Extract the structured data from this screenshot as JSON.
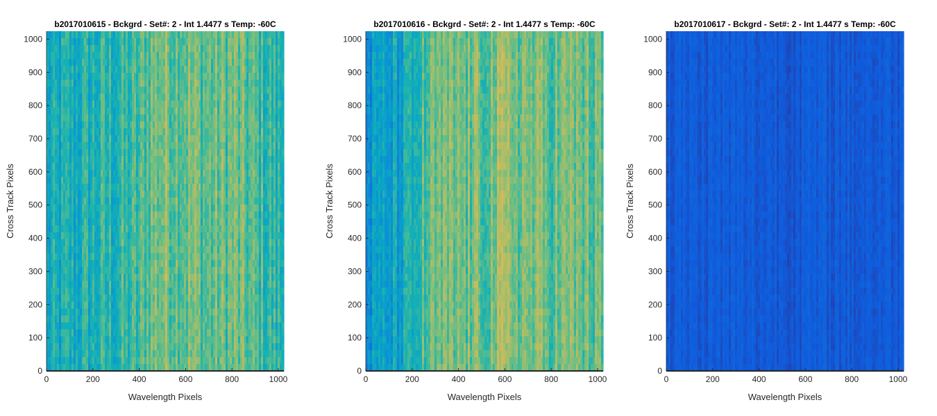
{
  "chart_data": [
    {
      "type": "heatmap",
      "title": "b2017010615 - Bckgrd - Set#: 2 - Int 1.4477 s Temp: -60C",
      "xlabel": "Wavelength Pixels",
      "ylabel": "Cross Track Pixels",
      "xlim": [
        0,
        1024
      ],
      "ylim": [
        0,
        1024
      ],
      "xticks": [
        "0",
        "200",
        "400",
        "600",
        "800",
        "1000"
      ],
      "yticks": [
        "0",
        "100",
        "200",
        "300",
        "400",
        "500",
        "600",
        "700",
        "800",
        "900",
        "1000"
      ],
      "colormap": "parula",
      "column_profile": {
        "x": [
          0,
          100,
          200,
          300,
          400,
          440,
          500,
          600,
          700,
          800,
          900,
          1000,
          1024
        ],
        "level": [
          0.4,
          0.45,
          0.48,
          0.5,
          0.53,
          0.62,
          0.66,
          0.64,
          0.6,
          0.63,
          0.56,
          0.5,
          0.48
        ]
      },
      "noise": 0.16
    },
    {
      "type": "heatmap",
      "title": "b2017010616 - Bckgrd - Set#: 2 - Int 1.4477 s Temp: -60C",
      "xlabel": "Wavelength Pixels",
      "ylabel": "Cross Track Pixels",
      "xlim": [
        0,
        1024
      ],
      "ylim": [
        0,
        1024
      ],
      "xticks": [
        "0",
        "200",
        "400",
        "600",
        "800",
        "1000"
      ],
      "yticks": [
        "0",
        "100",
        "200",
        "300",
        "400",
        "500",
        "600",
        "700",
        "800",
        "900",
        "1000"
      ],
      "colormap": "parula",
      "column_profile": {
        "x": [
          0,
          100,
          200,
          250,
          300,
          400,
          500,
          600,
          700,
          800,
          900,
          1000,
          1024
        ],
        "level": [
          0.32,
          0.36,
          0.44,
          0.56,
          0.6,
          0.63,
          0.62,
          0.68,
          0.64,
          0.62,
          0.64,
          0.6,
          0.58
        ]
      },
      "noise": 0.15
    },
    {
      "type": "heatmap",
      "title": "b2017010617 - Bckgrd - Set#: 2 - Int 1.4477 s Temp: -60C",
      "xlabel": "Wavelength Pixels",
      "ylabel": "Cross Track Pixels",
      "xlim": [
        0,
        1024
      ],
      "ylim": [
        0,
        1024
      ],
      "xticks": [
        "0",
        "200",
        "400",
        "600",
        "800",
        "1000"
      ],
      "yticks": [
        "0",
        "100",
        "200",
        "300",
        "400",
        "500",
        "600",
        "700",
        "800",
        "900",
        "1000"
      ],
      "colormap": "parula",
      "column_profile": {
        "x": [
          0,
          1024
        ],
        "level": [
          0.1,
          0.1
        ]
      },
      "noise": 0.04
    }
  ]
}
